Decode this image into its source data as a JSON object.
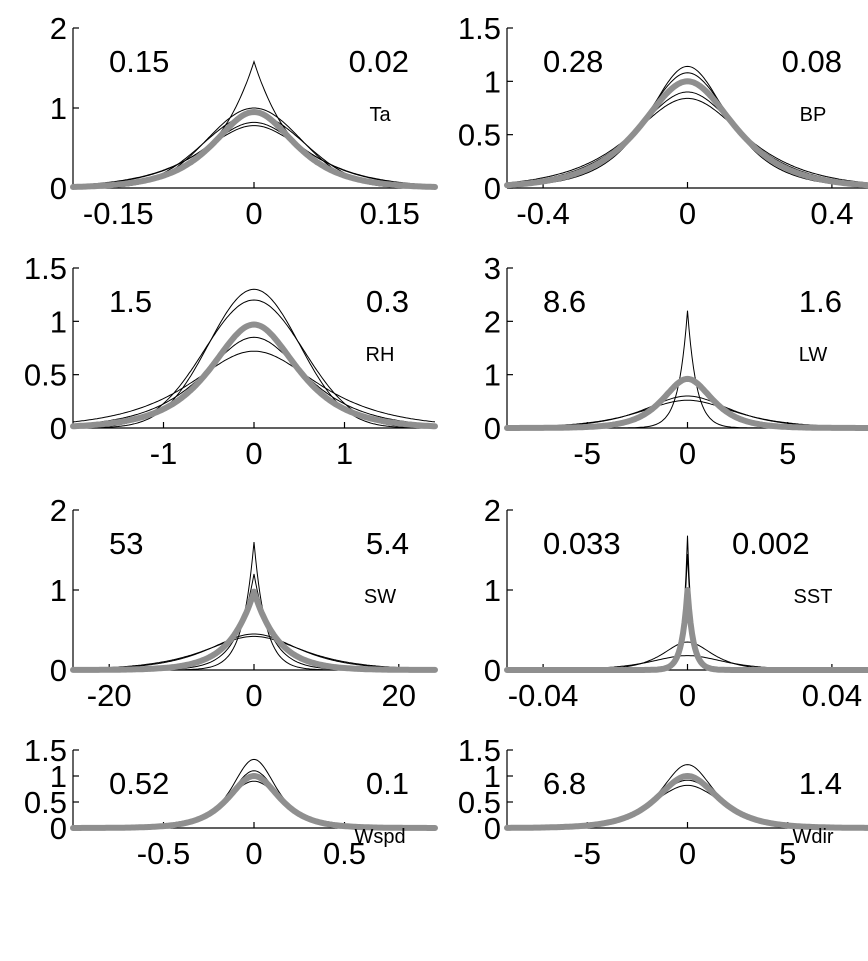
{
  "chart_data": [
    {
      "type": "line",
      "label": "Ta",
      "left_value": "0.15",
      "right_value": "0.02",
      "xlim": [
        -0.2,
        0.2
      ],
      "ylim": [
        0,
        2
      ],
      "xticks": [
        -0.15,
        0,
        0.15
      ],
      "xtick_labels": [
        "-0.15",
        "0",
        "0.15"
      ],
      "yticks": [
        0,
        1,
        2
      ],
      "ytick_labels": [
        "0",
        "1",
        "2"
      ],
      "series": [
        {
          "shape": "laplace",
          "peak": 1.58,
          "scale": 0.045
        },
        {
          "shape": "gauss",
          "peak": 1.0,
          "scale": 0.052
        },
        {
          "shape": "gauss",
          "peak": 0.92,
          "scale": 0.056
        },
        {
          "shape": "sech",
          "peak": 0.82,
          "scale": 0.05
        },
        {
          "shape": "sech",
          "peak": 0.78,
          "scale": 0.052
        }
      ],
      "mean": {
        "shape": "sech",
        "peak": 0.95,
        "scale": 0.04
      }
    },
    {
      "type": "line",
      "label": "BP",
      "left_value": "0.28",
      "right_value": "0.08",
      "xlim": [
        -0.5,
        0.5
      ],
      "ylim": [
        0,
        1.5
      ],
      "xticks": [
        -0.4,
        0,
        0.4
      ],
      "xtick_labels": [
        "-0.4",
        "0",
        "0.4"
      ],
      "yticks": [
        0,
        0.5,
        1,
        1.5
      ],
      "ytick_labels": [
        "0",
        "0.5",
        "1",
        "1.5"
      ],
      "series": [
        {
          "shape": "sech",
          "peak": 1.14,
          "scale": 0.1
        },
        {
          "shape": "sech",
          "peak": 1.08,
          "scale": 0.11
        },
        {
          "shape": "sech",
          "peak": 0.9,
          "scale": 0.13
        },
        {
          "shape": "sech",
          "peak": 0.84,
          "scale": 0.14
        }
      ],
      "mean": {
        "shape": "sech",
        "peak": 1.0,
        "scale": 0.115
      }
    },
    {
      "type": "line",
      "label": "RH",
      "left_value": "1.5",
      "right_value": "0.3",
      "xlim": [
        -2,
        2
      ],
      "ylim": [
        0,
        1.5
      ],
      "xticks": [
        -1,
        0,
        1
      ],
      "xtick_labels": [
        "-1",
        "0",
        "1"
      ],
      "yticks": [
        0,
        0.5,
        1,
        1.5
      ],
      "ytick_labels": [
        "0",
        "0.5",
        "1",
        "1.5"
      ],
      "series": [
        {
          "shape": "gauss",
          "peak": 1.3,
          "scale": 0.5
        },
        {
          "shape": "gauss",
          "peak": 1.2,
          "scale": 0.55
        },
        {
          "shape": "sech",
          "peak": 0.85,
          "scale": 0.5
        },
        {
          "shape": "sech",
          "peak": 0.72,
          "scale": 0.62
        }
      ],
      "mean": {
        "shape": "sech",
        "peak": 0.97,
        "scale": 0.42
      }
    },
    {
      "type": "line",
      "label": "LW",
      "left_value": "8.6",
      "right_value": "1.6",
      "xlim": [
        -9,
        9
      ],
      "ylim": [
        0,
        3
      ],
      "xticks": [
        -5,
        0,
        5
      ],
      "xtick_labels": [
        "-5",
        "0",
        "5"
      ],
      "yticks": [
        0,
        1,
        2,
        3
      ],
      "ytick_labels": [
        "0",
        "1",
        "2",
        "3"
      ],
      "series": [
        {
          "shape": "laplace",
          "peak": 2.2,
          "scale": 0.45
        },
        {
          "shape": "sech",
          "peak": 0.6,
          "scale": 1.9
        },
        {
          "shape": "sech",
          "peak": 0.52,
          "scale": 2.1
        }
      ],
      "mean": {
        "shape": "sech",
        "peak": 0.92,
        "scale": 1.1
      }
    },
    {
      "type": "line",
      "label": "SW",
      "left_value": "53",
      "right_value": "5.4",
      "xlim": [
        -25,
        25
      ],
      "ylim": [
        0,
        2
      ],
      "xticks": [
        -20,
        0,
        20
      ],
      "xtick_labels": [
        "-20",
        "0",
        "20"
      ],
      "yticks": [
        0,
        1,
        2
      ],
      "ytick_labels": [
        "0",
        "1",
        "2"
      ],
      "series": [
        {
          "shape": "laplace",
          "peak": 1.6,
          "scale": 1.6
        },
        {
          "shape": "laplace",
          "peak": 1.2,
          "scale": 2.4
        },
        {
          "shape": "sech",
          "peak": 0.45,
          "scale": 5.5
        },
        {
          "shape": "sech",
          "peak": 0.42,
          "scale": 6.0
        }
      ],
      "mean": {
        "shape": "laplace",
        "peak": 0.98,
        "scale": 3.4
      }
    },
    {
      "type": "line",
      "label": "SST",
      "left_value": "0.033",
      "right_value": "0.002",
      "xlim": [
        -0.05,
        0.05
      ],
      "ylim": [
        0,
        2
      ],
      "xticks": [
        -0.04,
        0,
        0.04
      ],
      "xtick_labels": [
        "-0.04",
        "0",
        "0.04"
      ],
      "yticks": [
        0,
        1,
        2
      ],
      "ytick_labels": [
        "0",
        "1",
        "2"
      ],
      "series": [
        {
          "shape": "laplace",
          "peak": 1.68,
          "scale": 0.0012
        },
        {
          "shape": "laplace",
          "peak": 1.45,
          "scale": 0.0014
        },
        {
          "shape": "sech",
          "peak": 0.35,
          "scale": 0.006
        },
        {
          "shape": "sech",
          "peak": 0.18,
          "scale": 0.009
        }
      ],
      "mean": {
        "shape": "laplace",
        "peak": 1.0,
        "scale": 0.0016
      }
    },
    {
      "type": "line",
      "label": "Wspd",
      "left_value": "0.52",
      "right_value": "0.1",
      "xlim": [
        -1,
        1
      ],
      "ylim": [
        0,
        1.5
      ],
      "xticks": [
        -0.5,
        0,
        0.5
      ],
      "xtick_labels": [
        "-0.5",
        "0",
        "0.5"
      ],
      "yticks": [
        0,
        0.5,
        1,
        1.5
      ],
      "ytick_labels": [
        "0",
        "0.5",
        "1",
        "1.5"
      ],
      "series": [
        {
          "shape": "sech",
          "peak": 1.32,
          "scale": 0.11
        },
        {
          "shape": "sech",
          "peak": 1.1,
          "scale": 0.12
        },
        {
          "shape": "sech",
          "peak": 0.9,
          "scale": 0.14
        }
      ],
      "mean": {
        "shape": "sech",
        "peak": 1.0,
        "scale": 0.125
      }
    },
    {
      "type": "line",
      "label": "Wdir",
      "left_value": "6.8",
      "right_value": "1.4",
      "xlim": [
        -9,
        9
      ],
      "ylim": [
        0,
        1.5
      ],
      "xticks": [
        -5,
        0,
        5
      ],
      "xtick_labels": [
        "-5",
        "0",
        "5"
      ],
      "yticks": [
        0,
        0.5,
        1,
        1.5
      ],
      "ytick_labels": [
        "0",
        "0.5",
        "1",
        "1.5"
      ],
      "series": [
        {
          "shape": "sech",
          "peak": 1.22,
          "scale": 1.2
        },
        {
          "shape": "sech",
          "peak": 0.92,
          "scale": 1.5
        },
        {
          "shape": "sech",
          "peak": 0.82,
          "scale": 1.6
        }
      ],
      "mean": {
        "shape": "sech",
        "peak": 1.0,
        "scale": 1.35
      }
    }
  ]
}
